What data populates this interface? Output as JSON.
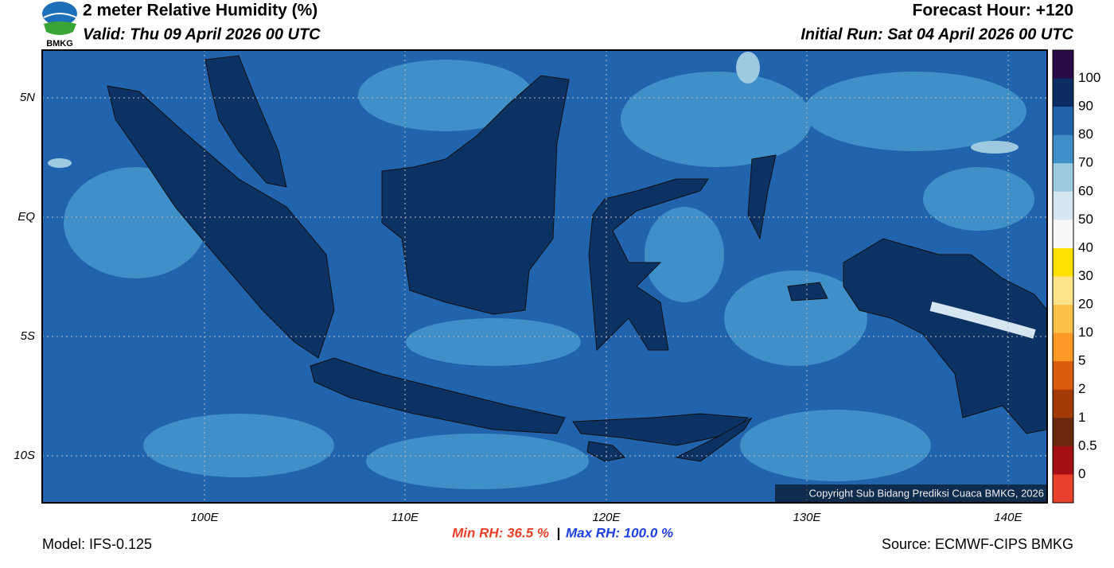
{
  "header": {
    "title": "2 meter Relative Humidity (%)",
    "valid": "Valid: Thu 09 April 2026 00 UTC",
    "forecast_hour": "Forecast Hour: +120",
    "initial_run": "Initial Run: Sat 04 April 2026 00 UTC",
    "logo": "BMKG"
  },
  "map": {
    "lat_labels": [
      "5N",
      "EQ",
      "5S",
      "10S"
    ],
    "lon_labels": [
      "100E",
      "110E",
      "120E",
      "130E",
      "140E"
    ],
    "copyright": "Copyright Sub Bidang Prediksi Cuaca BMKG, 2026"
  },
  "colorbar": {
    "labels": [
      "100",
      "90",
      "80",
      "70",
      "60",
      "50",
      "40",
      "30",
      "20",
      "10",
      "5",
      "2",
      "1",
      "0.5",
      "0"
    ],
    "colors": [
      "#2b0a45",
      "#0b2d63",
      "#2263ad",
      "#3f8fc8",
      "#9ecae1",
      "#d6e6f0",
      "#f7f7f7",
      "#ffe000",
      "#ffe38a",
      "#ffc04a",
      "#ff9a26",
      "#d95a0a",
      "#a33a08",
      "#6b2a10",
      "#a50f15",
      "#e8402a"
    ]
  },
  "footer": {
    "min_rh": "Min RH:  36.5 %",
    "separator": "|",
    "max_rh": "Max RH: 100.0 %",
    "model": "Model: IFS-0.125",
    "source": "Source: ECMWF-CIPS BMKG"
  }
}
